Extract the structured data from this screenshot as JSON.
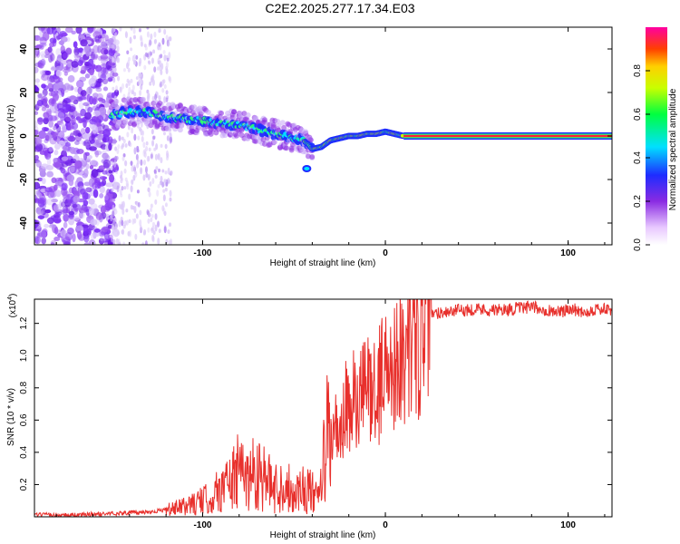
{
  "title": "C2E2.2025.277.17.34.E03",
  "chart_data": [
    {
      "type": "heatmap",
      "xlabel": "Height of straight line (km)",
      "ylabel": "Frequency (Hz)",
      "xlim": [
        -192,
        124
      ],
      "ylim": [
        -50,
        50
      ],
      "xticks": [
        -100,
        0,
        100
      ],
      "yticks": [
        -40,
        -20,
        0,
        20,
        40
      ],
      "colorbar": {
        "label": "Normalized spectral amplitude",
        "range": [
          0,
          1
        ],
        "ticks": [
          0,
          0.2,
          0.4,
          0.6,
          0.8
        ]
      },
      "ridge": {
        "name": "frequency ridge",
        "x": [
          -148,
          -140,
          -130,
          -120,
          -110,
          -100,
          -90,
          -80,
          -70,
          -60,
          -55,
          -50,
          -45,
          -42,
          -40,
          -35,
          -30,
          -25,
          -20,
          -15,
          -10,
          -5,
          0,
          5,
          10,
          20,
          40,
          60,
          80,
          100,
          124
        ],
        "y": [
          10,
          11,
          11,
          9,
          8,
          7,
          6,
          5,
          3,
          1,
          0,
          -1,
          -2,
          -4,
          -6,
          -5,
          -2,
          -1,
          0,
          0,
          1,
          1,
          2,
          1,
          0,
          0,
          0,
          0,
          0,
          0,
          0
        ]
      },
      "annotations": []
    },
    {
      "type": "line",
      "xlabel": "Height of straight line (km)",
      "ylabel": "SNR (10 * v/v)",
      "y_scale_label": "(x10",
      "y_scale_exponent": "4",
      "xlim": [
        -192,
        124
      ],
      "ylim": [
        0,
        1.35
      ],
      "xticks": [
        -100,
        0,
        100
      ],
      "yticks": [
        0.2,
        0.4,
        0.6,
        0.8,
        1.0,
        1.2
      ],
      "series": [
        {
          "name": "SNR",
          "color": "#e8302c",
          "x": [
            -192,
            -170,
            -150,
            -130,
            -115,
            -105,
            -95,
            -90,
            -85,
            -80,
            -75,
            -70,
            -65,
            -60,
            -55,
            -50,
            -45,
            -40,
            -37,
            -35,
            -33,
            -30,
            -27,
            -25,
            -22,
            -20,
            -17,
            -15,
            -12,
            -10,
            -7,
            -5,
            -2,
            0,
            3,
            5,
            8,
            10,
            13,
            15,
            18,
            20,
            25,
            30,
            40,
            50,
            60,
            70,
            80,
            90,
            98,
            100,
            105,
            110,
            115,
            124
          ],
          "y": [
            0.01,
            0.01,
            0.02,
            0.03,
            0.05,
            0.08,
            0.12,
            0.18,
            0.22,
            0.28,
            0.25,
            0.3,
            0.22,
            0.18,
            0.2,
            0.15,
            0.18,
            0.15,
            0.1,
            0.2,
            0.45,
            0.5,
            0.55,
            0.42,
            0.7,
            0.6,
            0.75,
            0.65,
            0.78,
            0.8,
            0.85,
            0.7,
            0.9,
            0.95,
            0.85,
            1.0,
            1.05,
            0.95,
            1.1,
            1.15,
            1.05,
            1.2,
            1.25,
            1.27,
            1.28,
            1.29,
            1.28,
            1.29,
            1.3,
            1.28,
            1.27,
            1.3,
            1.28,
            1.27,
            1.29,
            1.28
          ]
        }
      ],
      "annotations": []
    }
  ]
}
